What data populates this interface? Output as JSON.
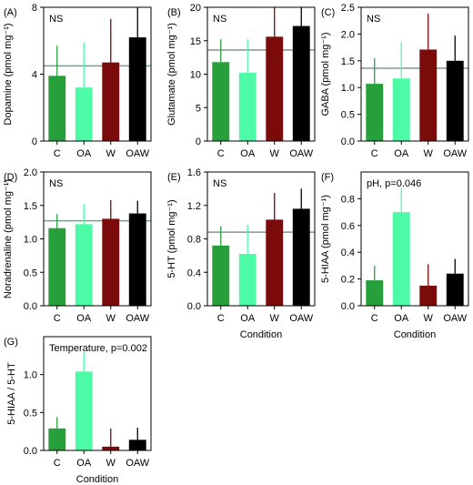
{
  "colors": {
    "C": "#27a03c",
    "OA": "#4dfaa6",
    "W": "#7b0a0a",
    "OAW": "#000000",
    "reference_line": "#7f9a8c"
  },
  "chart_data": [
    {
      "type": "bar",
      "panel": "(A)",
      "annotation": "NS",
      "ylabel": "Dopamine (pmol mg⁻¹)",
      "xlabel": "",
      "ylim": [
        0,
        8
      ],
      "yticks": [
        "0",
        "4",
        "8"
      ],
      "categories": [
        "C",
        "OA",
        "W",
        "OAW"
      ],
      "values": [
        3.9,
        3.2,
        4.7,
        6.2
      ],
      "error_upper": [
        5.7,
        5.9,
        7.3,
        8.0
      ],
      "reference_line": 4.5
    },
    {
      "type": "bar",
      "panel": "(B)",
      "annotation": "NS",
      "ylabel": "Glutamate (pmol mg⁻¹)",
      "xlabel": "",
      "ylim": [
        0,
        20
      ],
      "yticks": [
        "0",
        "5",
        "10",
        "15",
        "20"
      ],
      "categories": [
        "C",
        "OA",
        "W",
        "OAW"
      ],
      "values": [
        11.8,
        10.2,
        15.6,
        17.2
      ],
      "error_upper": [
        15.2,
        15.2,
        20.0,
        20.0
      ],
      "reference_line": 13.6
    },
    {
      "type": "bar",
      "panel": "(C)",
      "annotation": "NS",
      "ylabel": "GABA (pmol mg⁻¹)",
      "xlabel": "",
      "ylim": [
        0,
        2.5
      ],
      "yticks": [
        "0.0",
        "0.5",
        "1.0",
        "1.5",
        "2.0",
        "2.5"
      ],
      "categories": [
        "C",
        "OA",
        "W",
        "OAW"
      ],
      "values": [
        1.07,
        1.17,
        1.71,
        1.5
      ],
      "error_upper": [
        1.55,
        1.85,
        2.38,
        1.97
      ],
      "reference_line": 1.36
    },
    {
      "type": "bar",
      "panel": "(D)",
      "annotation": "NS",
      "ylabel": "Noradrenaline (pmol mg⁻¹)",
      "xlabel": "",
      "ylim": [
        0,
        2.0
      ],
      "yticks": [
        "0.0",
        "0.5",
        "1.0",
        "1.5",
        "2.0"
      ],
      "categories": [
        "C",
        "OA",
        "W",
        "OAW"
      ],
      "values": [
        1.16,
        1.22,
        1.3,
        1.38
      ],
      "error_upper": [
        1.37,
        1.52,
        1.58,
        1.57
      ],
      "reference_line": 1.27
    },
    {
      "type": "bar",
      "panel": "(E)",
      "annotation": "NS",
      "ylabel": "5-HT (pmol mg⁻¹)",
      "xlabel": "Condition",
      "ylim": [
        0,
        1.6
      ],
      "yticks": [
        "0.0",
        "0.4",
        "0.8",
        "1.2",
        "1.6"
      ],
      "categories": [
        "C",
        "OA",
        "W",
        "OAW"
      ],
      "values": [
        0.72,
        0.62,
        1.03,
        1.16
      ],
      "error_upper": [
        0.95,
        0.97,
        1.35,
        1.4
      ],
      "reference_line": 0.88
    },
    {
      "type": "bar",
      "panel": "(F)",
      "annotation": "pH, p=0.046",
      "ylabel": "5-HIAA (pmol mg⁻¹)",
      "xlabel": "Condition",
      "ylim": [
        0,
        1.0
      ],
      "yticks": [
        "0.0",
        "0.2",
        "0.4",
        "0.6",
        "0.8"
      ],
      "categories": [
        "C",
        "OA",
        "W",
        "OAW"
      ],
      "values": [
        0.19,
        0.7,
        0.15,
        0.24
      ],
      "error_upper": [
        0.3,
        0.88,
        0.31,
        0.35
      ],
      "reference_line": null
    },
    {
      "type": "bar",
      "panel": "(G)",
      "annotation": "Temperature, p=0.002",
      "ylabel": "5-HIAA / 5-HT",
      "xlabel": "Condition",
      "ylim": [
        0,
        1.5
      ],
      "yticks": [
        "0.0",
        "0.5",
        "1.0"
      ],
      "categories": [
        "C",
        "OA",
        "W",
        "OAW"
      ],
      "values": [
        0.29,
        1.04,
        0.05,
        0.14
      ],
      "error_upper": [
        0.44,
        1.3,
        0.29,
        0.3
      ],
      "reference_line": null
    }
  ]
}
